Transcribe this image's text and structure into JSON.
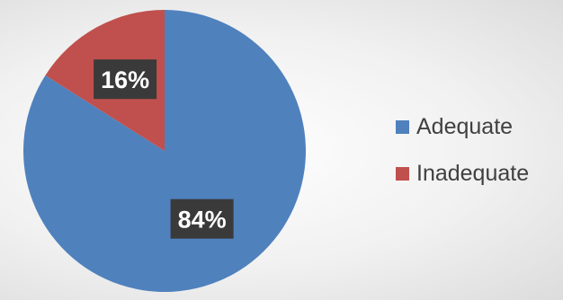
{
  "chart_data": {
    "type": "pie",
    "categories": [
      "Adequate",
      "Inadequate"
    ],
    "values": [
      84,
      16
    ],
    "data_labels": [
      "84%",
      "16%"
    ],
    "colors": [
      "#4f81bd",
      "#c0504d"
    ],
    "legend_position": "right",
    "start_angle_deg": 0,
    "direction": "clockwise"
  }
}
